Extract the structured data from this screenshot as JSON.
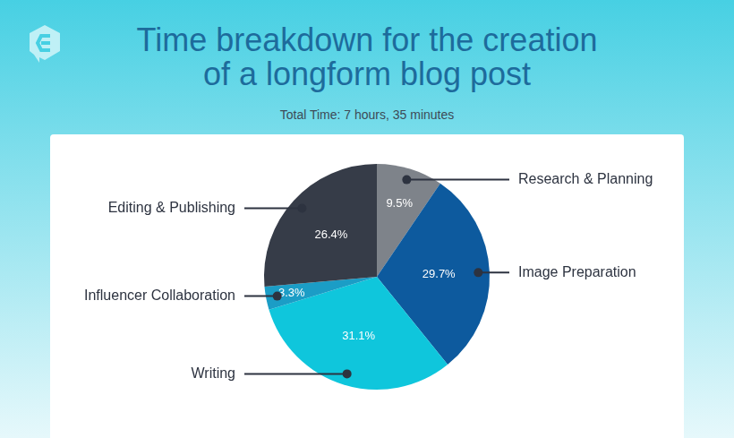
{
  "chart_data": {
    "type": "pie",
    "title": "Time breakdown for the creation of a longform blog post",
    "subtitle": "Total Time: 7 hours, 35 minutes",
    "categories": [
      "Research & Planning",
      "Image Preparation",
      "Writing",
      "Influencer Collaboration",
      "Editing & Publishing"
    ],
    "values": [
      9.5,
      29.7,
      31.1,
      3.3,
      26.4
    ],
    "value_labels": [
      "9.5%",
      "29.7%",
      "31.1%",
      "3.3%",
      "26.4%"
    ],
    "colors": [
      "#7e838a",
      "#0d5a9e",
      "#0fc6dc",
      "#1b9dc6",
      "#363c48"
    ],
    "data_labels": true
  }
}
